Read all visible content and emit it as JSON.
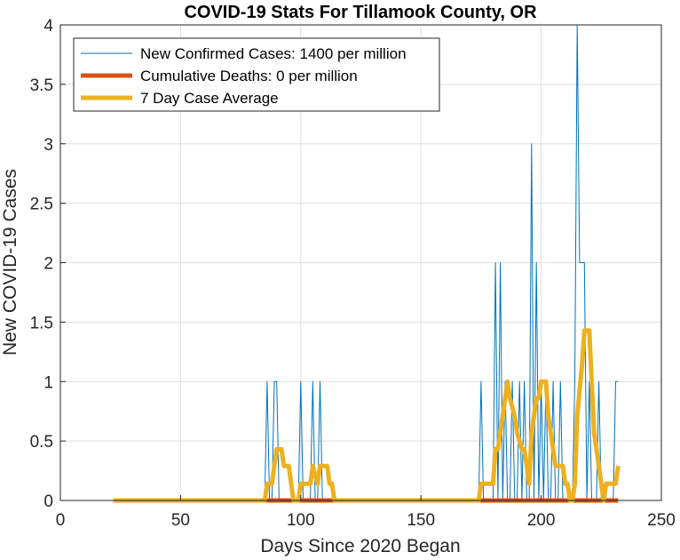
{
  "chart_data": {
    "type": "line",
    "title": "COVID-19 Stats For Tillamook County, OR",
    "xlabel": "Days Since 2020 Began",
    "ylabel": "New COVID-19 Cases",
    "xlim": [
      0,
      250
    ],
    "ylim": [
      0,
      4
    ],
    "xticks": [
      0,
      50,
      100,
      150,
      200,
      250
    ],
    "yticks": [
      0,
      0.5,
      1,
      1.5,
      2,
      2.5,
      3,
      3.5,
      4
    ],
    "grid": true,
    "legend_position": "top-left",
    "series": [
      {
        "name": "New Confirmed Cases: 1400 per million",
        "color": "#0072BD",
        "style": "thin",
        "points": [
          [
            22,
            0
          ],
          [
            85,
            0
          ],
          [
            86,
            1
          ],
          [
            87,
            0
          ],
          [
            88,
            0
          ],
          [
            89,
            1
          ],
          [
            90,
            1
          ],
          [
            91,
            0
          ],
          [
            92,
            0
          ],
          [
            93,
            0
          ],
          [
            99,
            0
          ],
          [
            100,
            1
          ],
          [
            101,
            0
          ],
          [
            104,
            0
          ],
          [
            105,
            1
          ],
          [
            106,
            0
          ],
          [
            107,
            0
          ],
          [
            108,
            1
          ],
          [
            109,
            0
          ],
          [
            112,
            0
          ],
          [
            173,
            0
          ],
          [
            174,
            0
          ],
          [
            175,
            1
          ],
          [
            176,
            0
          ],
          [
            180,
            0
          ],
          [
            181,
            2
          ],
          [
            182,
            0
          ],
          [
            183,
            2
          ],
          [
            184,
            0
          ],
          [
            185,
            1
          ],
          [
            186,
            0
          ],
          [
            187,
            0
          ],
          [
            188,
            1
          ],
          [
            189,
            0
          ],
          [
            190,
            0
          ],
          [
            191,
            1
          ],
          [
            192,
            0
          ],
          [
            193,
            1
          ],
          [
            194,
            0
          ],
          [
            195,
            0
          ],
          [
            196,
            3
          ],
          [
            197,
            0
          ],
          [
            198,
            2
          ],
          [
            199,
            0
          ],
          [
            200,
            1
          ],
          [
            201,
            0
          ],
          [
            202,
            1
          ],
          [
            203,
            0
          ],
          [
            204,
            0
          ],
          [
            205,
            1
          ],
          [
            206,
            0
          ],
          [
            207,
            0
          ],
          [
            208,
            1
          ],
          [
            209,
            0
          ],
          [
            213,
            0
          ],
          [
            214,
            1
          ],
          [
            215,
            4
          ],
          [
            216,
            2
          ],
          [
            217,
            2
          ],
          [
            218,
            2
          ],
          [
            219,
            0
          ],
          [
            220,
            1
          ],
          [
            221,
            0
          ],
          [
            222,
            0
          ],
          [
            223,
            0
          ],
          [
            224,
            1
          ],
          [
            225,
            0
          ],
          [
            228,
            0
          ],
          [
            229,
            0
          ],
          [
            230,
            0
          ],
          [
            231,
            1
          ],
          [
            232,
            1
          ]
        ]
      },
      {
        "name": "Cumulative Deaths: 0 per million",
        "color": "#D95319",
        "style": "thick",
        "points": [
          [
            85,
            0
          ],
          [
            232,
            0
          ]
        ]
      },
      {
        "name": "7 Day Case Average",
        "color": "#EDB120",
        "style": "thick",
        "points": [
          [
            22,
            0
          ],
          [
            85,
            0
          ],
          [
            86,
            0.14
          ],
          [
            88,
            0.14
          ],
          [
            89,
            0.29
          ],
          [
            90,
            0.43
          ],
          [
            92,
            0.43
          ],
          [
            93,
            0.29
          ],
          [
            95,
            0.29
          ],
          [
            96,
            0.14
          ],
          [
            97,
            0
          ],
          [
            99,
            0
          ],
          [
            100,
            0.14
          ],
          [
            103,
            0.14
          ],
          [
            104,
            0.14
          ],
          [
            105,
            0.29
          ],
          [
            107,
            0.14
          ],
          [
            108,
            0.29
          ],
          [
            110,
            0.29
          ],
          [
            111,
            0.29
          ],
          [
            112,
            0.14
          ],
          [
            113,
            0.14
          ],
          [
            114,
            0
          ],
          [
            173,
            0
          ],
          [
            174,
            0
          ],
          [
            175,
            0.14
          ],
          [
            180,
            0.14
          ],
          [
            181,
            0.43
          ],
          [
            182,
            0.43
          ],
          [
            183,
            0.57
          ],
          [
            184,
            0.71
          ],
          [
            185,
            0.86
          ],
          [
            186,
            1
          ],
          [
            187,
            0.86
          ],
          [
            189,
            0.71
          ],
          [
            190,
            0.57
          ],
          [
            192,
            0.43
          ],
          [
            193,
            0.43
          ],
          [
            194,
            0.29
          ],
          [
            195,
            0.14
          ],
          [
            196,
            0.57
          ],
          [
            197,
            0.71
          ],
          [
            198,
            0.86
          ],
          [
            199,
            0.86
          ],
          [
            200,
            1
          ],
          [
            202,
            1
          ],
          [
            203,
            0.71
          ],
          [
            205,
            0.43
          ],
          [
            206,
            0.29
          ],
          [
            208,
            0.29
          ],
          [
            209,
            0.29
          ],
          [
            210,
            0.14
          ],
          [
            211,
            0.14
          ],
          [
            212,
            0
          ],
          [
            213,
            0
          ],
          [
            214,
            0.14
          ],
          [
            215,
            0.71
          ],
          [
            217,
            1.14
          ],
          [
            218,
            1.43
          ],
          [
            220,
            1.43
          ],
          [
            221,
            1
          ],
          [
            222,
            0.57
          ],
          [
            223,
            0.43
          ],
          [
            224,
            0.29
          ],
          [
            225,
            0.14
          ],
          [
            226,
            0
          ],
          [
            227,
            0.14
          ],
          [
            230,
            0.14
          ],
          [
            231,
            0.14
          ],
          [
            232,
            0.29
          ]
        ]
      }
    ]
  }
}
